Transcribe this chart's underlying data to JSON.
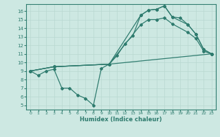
{
  "xlabel": "Humidex (Indice chaleur)",
  "background_color": "#cde8e2",
  "line_color": "#2e7b6e",
  "grid_color": "#b8d8d0",
  "xlim": [
    -0.5,
    23.5
  ],
  "ylim": [
    4.5,
    16.8
  ],
  "xticks": [
    0,
    1,
    2,
    3,
    4,
    5,
    6,
    7,
    8,
    9,
    10,
    11,
    12,
    13,
    14,
    15,
    16,
    17,
    18,
    19,
    20,
    21,
    22,
    23
  ],
  "yticks": [
    5,
    6,
    7,
    8,
    9,
    10,
    11,
    12,
    13,
    14,
    15,
    16
  ],
  "series1_x": [
    0,
    1,
    2,
    3,
    4,
    5,
    6,
    7,
    8,
    9,
    10,
    11,
    12,
    13,
    14,
    15,
    16,
    17,
    18,
    19,
    20,
    21,
    22,
    23
  ],
  "series1_y": [
    9.0,
    8.5,
    9.0,
    9.2,
    7.0,
    7.0,
    6.2,
    5.8,
    5.0,
    9.3,
    9.8,
    10.8,
    12.2,
    13.1,
    15.5,
    16.1,
    16.2,
    16.6,
    15.3,
    15.2,
    14.4,
    13.3,
    11.5,
    11.0
  ],
  "series2_x": [
    0,
    3,
    10,
    14,
    15,
    16,
    17,
    18,
    20,
    21,
    22,
    23
  ],
  "series2_y": [
    9.0,
    9.5,
    9.8,
    15.5,
    16.1,
    16.2,
    16.6,
    15.3,
    14.4,
    13.3,
    11.5,
    11.0
  ],
  "series3_x": [
    0,
    3,
    10,
    14,
    15,
    16,
    17,
    18,
    20,
    21,
    22,
    23
  ],
  "series3_y": [
    9.0,
    9.5,
    9.8,
    14.4,
    15.0,
    15.0,
    15.2,
    14.5,
    13.5,
    12.8,
    11.3,
    11.0
  ],
  "series4_x": [
    0,
    3,
    10,
    23
  ],
  "series4_y": [
    9.0,
    9.5,
    9.8,
    11.0
  ]
}
